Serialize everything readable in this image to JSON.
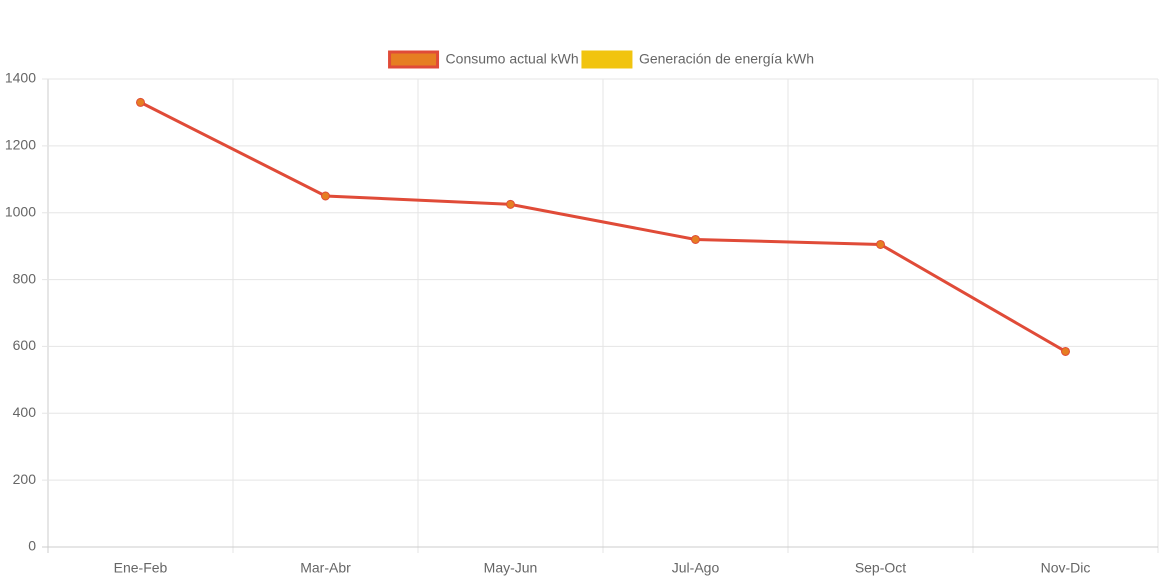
{
  "chart_data": {
    "type": "line",
    "categories": [
      "Ene-Feb",
      "Mar-Abr",
      "May-Jun",
      "Jul-Ago",
      "Sep-Oct",
      "Nov-Dic"
    ],
    "series": [
      {
        "name": "Consumo actual kWh",
        "color": "#e04b38",
        "point_color": "#e67e22",
        "values": [
          1330,
          1050,
          1025,
          920,
          905,
          585
        ]
      },
      {
        "name": "Generación de energía kWh",
        "color": "#f1c40f",
        "point_color": "#f1c40f",
        "values": [
          null,
          null,
          null,
          null,
          null,
          null
        ]
      }
    ],
    "ylim": [
      0,
      1400
    ],
    "yticks": [
      0,
      200,
      400,
      600,
      800,
      1000,
      1200,
      1400
    ],
    "grid": true,
    "legend": "top"
  }
}
